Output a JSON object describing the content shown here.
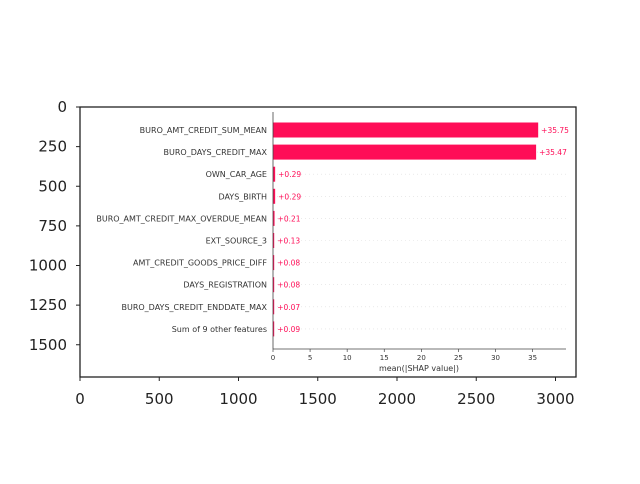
{
  "outer_axes": {
    "x_ticks": [
      "0",
      "500",
      "1000",
      "1500",
      "2000",
      "2500",
      "3000"
    ],
    "y_ticks": [
      "0",
      "250",
      "500",
      "750",
      "1000",
      "1250",
      "1500"
    ]
  },
  "chart_data": {
    "type": "bar",
    "orientation": "horizontal",
    "categories": [
      "BURO_AMT_CREDIT_SUM_MEAN",
      "BURO_DAYS_CREDIT_MAX",
      "OWN_CAR_AGE",
      "DAYS_BIRTH",
      "BURO_AMT_CREDIT_MAX_OVERDUE_MEAN",
      "EXT_SOURCE_3",
      "AMT_CREDIT_GOODS_PRICE_DIFF",
      "DAYS_REGISTRATION",
      "BURO_DAYS_CREDIT_ENDDATE_MAX",
      "Sum of 9 other features"
    ],
    "values": [
      35.75,
      35.47,
      0.29,
      0.29,
      0.21,
      0.13,
      0.08,
      0.08,
      0.07,
      0.09
    ],
    "value_labels": [
      "+35.75",
      "+35.47",
      "+0.29",
      "+0.29",
      "+0.21",
      "+0.13",
      "+0.08",
      "+0.08",
      "+0.07",
      "+0.09"
    ],
    "xlabel": "mean(|SHAP value|)",
    "x_ticks": [
      "0",
      "5",
      "10",
      "15",
      "20",
      "25",
      "30",
      "35"
    ],
    "xlim": [
      0,
      39.5
    ],
    "bar_color": "#ff0d57",
    "grid": "dotted horizontal lines",
    "legend": "none"
  }
}
